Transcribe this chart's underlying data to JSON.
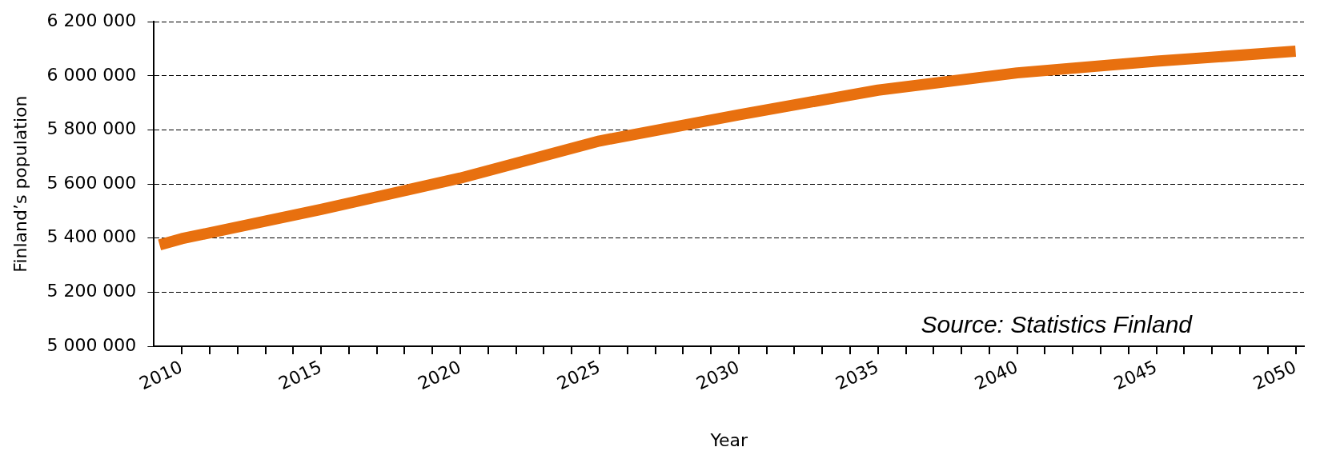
{
  "chart_data": {
    "type": "line",
    "xlabel": "Year",
    "ylabel": "Finland’s population",
    "annotations": [
      "Source: Statistics Finland"
    ],
    "x": [
      2009.2,
      2010,
      2015,
      2020,
      2025,
      2030,
      2035,
      2040,
      2045,
      2050
    ],
    "series": [
      {
        "color": "#e8700f",
        "values": [
          5375000,
          5398000,
          5506000,
          5622000,
          5759000,
          5856000,
          5947000,
          6011000,
          6054000,
          6091000
        ]
      }
    ],
    "xlim": [
      2009,
      2050.3
    ],
    "xticks": [
      {
        "value": 2010,
        "label": "2010"
      },
      {
        "value": 2011,
        "label": null
      },
      {
        "value": 2012,
        "label": null
      },
      {
        "value": 2013,
        "label": null
      },
      {
        "value": 2014,
        "label": null
      },
      {
        "value": 2015,
        "label": "2015"
      },
      {
        "value": 2016,
        "label": null
      },
      {
        "value": 2017,
        "label": null
      },
      {
        "value": 2018,
        "label": null
      },
      {
        "value": 2019,
        "label": null
      },
      {
        "value": 2020,
        "label": "2020"
      },
      {
        "value": 2021,
        "label": null
      },
      {
        "value": 2022,
        "label": null
      },
      {
        "value": 2023,
        "label": null
      },
      {
        "value": 2024,
        "label": null
      },
      {
        "value": 2025,
        "label": "2025"
      },
      {
        "value": 2026,
        "label": null
      },
      {
        "value": 2027,
        "label": null
      },
      {
        "value": 2028,
        "label": null
      },
      {
        "value": 2029,
        "label": null
      },
      {
        "value": 2030,
        "label": "2030"
      },
      {
        "value": 2031,
        "label": null
      },
      {
        "value": 2032,
        "label": null
      },
      {
        "value": 2033,
        "label": null
      },
      {
        "value": 2034,
        "label": null
      },
      {
        "value": 2035,
        "label": "2035"
      },
      {
        "value": 2036,
        "label": null
      },
      {
        "value": 2037,
        "label": null
      },
      {
        "value": 2038,
        "label": null
      },
      {
        "value": 2039,
        "label": null
      },
      {
        "value": 2040,
        "label": "2040"
      },
      {
        "value": 2041,
        "label": null
      },
      {
        "value": 2042,
        "label": null
      },
      {
        "value": 2043,
        "label": null
      },
      {
        "value": 2044,
        "label": null
      },
      {
        "value": 2045,
        "label": "2045"
      },
      {
        "value": 2046,
        "label": null
      },
      {
        "value": 2047,
        "label": null
      },
      {
        "value": 2048,
        "label": null
      },
      {
        "value": 2049,
        "label": null
      },
      {
        "value": 2050,
        "label": "2050"
      }
    ],
    "ylim": [
      5000000,
      6200000
    ],
    "yticks": [
      {
        "value": 5000000,
        "label": "5 000 000"
      },
      {
        "value": 5200000,
        "label": "5 200 000"
      },
      {
        "value": 5400000,
        "label": "5 400 000"
      },
      {
        "value": 5600000,
        "label": "5 600 000"
      },
      {
        "value": 5800000,
        "label": "5 800 000"
      },
      {
        "value": 6000000,
        "label": "6 000 000"
      },
      {
        "value": 6200000,
        "label": "6 200 000"
      }
    ],
    "grid": "y",
    "legend": false,
    "marker": "none",
    "line_style": "solid"
  }
}
